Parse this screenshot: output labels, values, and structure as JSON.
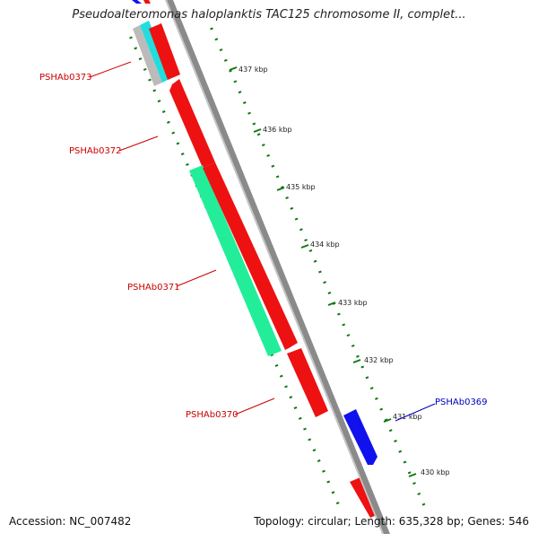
{
  "title": "Pseudoalteromonas haloplanktis TAC125 chromosome II, complet...",
  "footer": {
    "accession": "Accession: NC_007482",
    "summary": "Topology: circular; Length: 635,328 bp; Genes: 546"
  },
  "colors": {
    "backbone": "#8a8a8a",
    "forward_gene": "#ee1111",
    "reverse_gene": "#1111ee",
    "cds_teal": "#22ee99",
    "cds_cyan": "#22dddd",
    "tick": "#117711",
    "label_red": "#cc0000",
    "label_blue": "#0000bb"
  },
  "tick_labels": [
    "437 kbp",
    "436 kbp",
    "435 kbp",
    "434 kbp",
    "433 kbp",
    "432 kbp",
    "431 kbp",
    "430 kbp"
  ],
  "gene_labels": [
    {
      "name": "PSHAb0373",
      "color": "red"
    },
    {
      "name": "PSHAb0372",
      "color": "red"
    },
    {
      "name": "PSHAb0371",
      "color": "red"
    },
    {
      "name": "PSHAb0370",
      "color": "red"
    },
    {
      "name": "PSHAb0369",
      "color": "blue"
    }
  ]
}
